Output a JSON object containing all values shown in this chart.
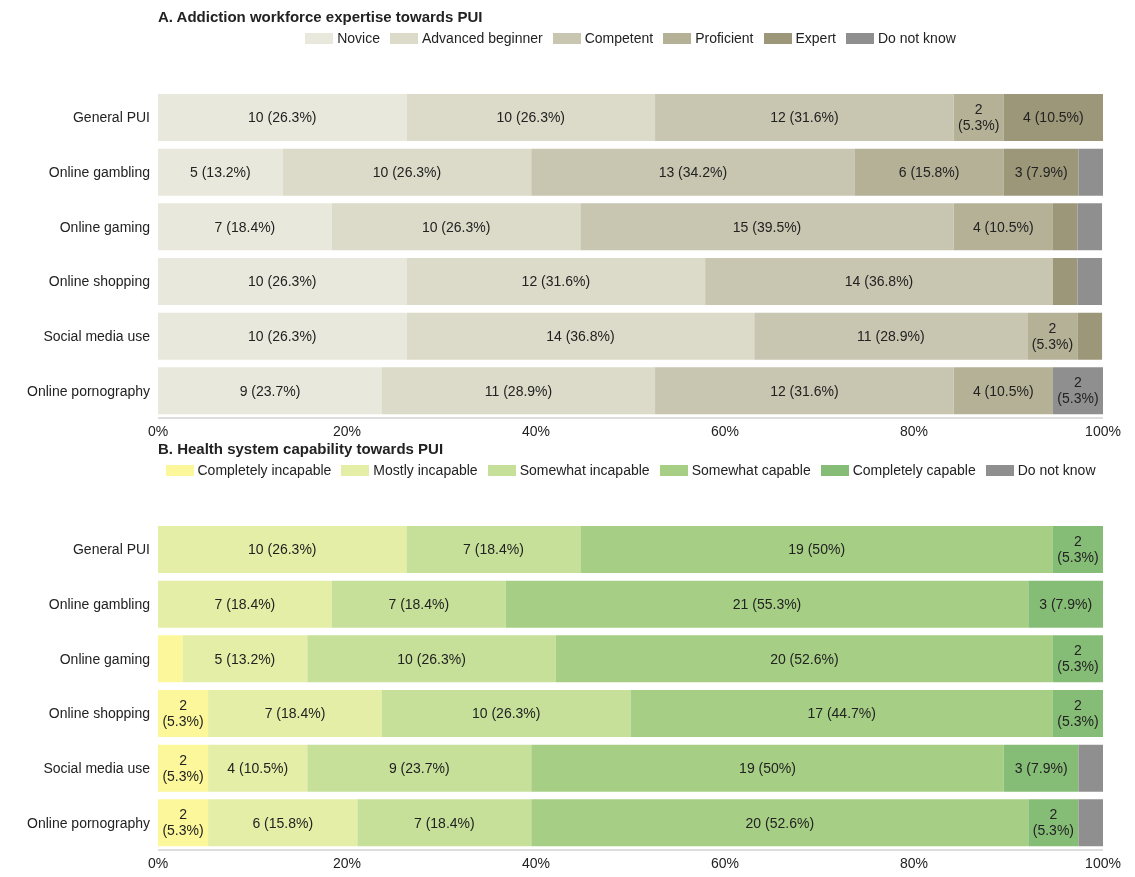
{
  "chart_data": [
    {
      "type": "bar",
      "orientation": "horizontal",
      "stacked": true,
      "title": "A. Addiction workforce expertise towards PUI",
      "categories": [
        "General PUI",
        "Online gambling",
        "Online gaming",
        "Online shopping",
        "Social media use",
        "Online pornography"
      ],
      "xlim": [
        0,
        100
      ],
      "xticks": [
        {
          "value": 0,
          "label": "0%"
        },
        {
          "value": 20,
          "label": "20%"
        },
        {
          "value": 40,
          "label": "40%"
        },
        {
          "value": 60,
          "label": "60%"
        },
        {
          "value": 80,
          "label": "80%"
        },
        {
          "value": 100,
          "label": "100%"
        }
      ],
      "legend": "top",
      "grid": false,
      "series": [
        {
          "name": "Novice",
          "color": "#e9e8dc",
          "values": [
            26.3,
            13.2,
            18.4,
            26.3,
            26.3,
            23.7
          ],
          "value_labels": [
            "10 (26.3%)",
            "5 (13.2%)",
            "7 (18.4%)",
            "10 (26.3%)",
            "10 (26.3%)",
            "9 (23.7%)"
          ]
        },
        {
          "name": "Advanced beginner",
          "color": "#dcdac8",
          "values": [
            26.3,
            26.3,
            26.3,
            31.6,
            36.8,
            28.9
          ],
          "value_labels": [
            "10 (26.3%)",
            "10 (26.3%)",
            "10 (26.3%)",
            "12 (31.6%)",
            "14 (36.8%)",
            "11 (28.9%)"
          ]
        },
        {
          "name": "Competent",
          "color": "#c8c5b0",
          "values": [
            31.6,
            34.2,
            39.5,
            36.8,
            28.9,
            31.6
          ],
          "value_labels": [
            "12 (31.6%)",
            "13 (34.2%)",
            "15 (39.5%)",
            "14 (36.8%)",
            "11 (28.9%)",
            "12 (31.6%)"
          ]
        },
        {
          "name": "Proficient",
          "color": "#b5b197",
          "values": [
            5.3,
            15.8,
            10.5,
            0,
            5.3,
            10.5
          ],
          "value_labels": [
            "2 (5.3%)",
            "6 (15.8%)",
            "4 (10.5%)",
            null,
            "2 (5.3%)",
            "4 (10.5%)"
          ]
        },
        {
          "name": "Expert",
          "color": "#9c9779",
          "values": [
            10.5,
            7.9,
            2.6,
            2.6,
            2.6,
            0
          ],
          "value_labels": [
            "4 (10.5%)",
            "3 (7.9%)",
            null,
            null,
            null,
            null
          ]
        },
        {
          "name": "Do not know",
          "color": "#8f8f8f",
          "values": [
            0,
            2.6,
            2.6,
            2.6,
            0,
            5.3
          ],
          "value_labels": [
            null,
            null,
            null,
            null,
            null,
            "2 (5.3%)"
          ]
        }
      ]
    },
    {
      "type": "bar",
      "orientation": "horizontal",
      "stacked": true,
      "title": "B. Health system capability towards PUI",
      "categories": [
        "General PUI",
        "Online gambling",
        "Online gaming",
        "Online shopping",
        "Social media use",
        "Online pornography"
      ],
      "xlim": [
        0,
        100
      ],
      "xticks": [
        {
          "value": 0,
          "label": "0%"
        },
        {
          "value": 20,
          "label": "20%"
        },
        {
          "value": 40,
          "label": "40%"
        },
        {
          "value": 60,
          "label": "60%"
        },
        {
          "value": 80,
          "label": "80%"
        },
        {
          "value": 100,
          "label": "100%"
        }
      ],
      "legend": "top",
      "grid": false,
      "series": [
        {
          "name": "Completely incapable",
          "color": "#fbf79a",
          "values": [
            0,
            0,
            2.6,
            5.3,
            5.3,
            5.3
          ],
          "value_labels": [
            null,
            null,
            null,
            "2 (5.3%)",
            "2 (5.3%)",
            "2 (5.3%)"
          ]
        },
        {
          "name": "Mostly incapable",
          "color": "#e4eea6",
          "values": [
            26.3,
            18.4,
            13.2,
            18.4,
            10.5,
            15.8
          ],
          "value_labels": [
            "10 (26.3%)",
            "7 (18.4%)",
            "5 (13.2%)",
            "7 (18.4%)",
            "4 (10.5%)",
            "6 (15.8%)"
          ]
        },
        {
          "name": "Somewhat incapable",
          "color": "#c6e09a",
          "values": [
            18.4,
            18.4,
            26.3,
            26.3,
            23.7,
            18.4
          ],
          "value_labels": [
            "7 (18.4%)",
            "7 (18.4%)",
            "10 (26.3%)",
            "10 (26.3%)",
            "9 (23.7%)",
            "7 (18.4%)"
          ]
        },
        {
          "name": "Somewhat capable",
          "color": "#a6cf85",
          "values": [
            50,
            55.3,
            52.6,
            44.7,
            50,
            52.6
          ],
          "value_labels": [
            "19 (50%)",
            "21 (55.3%)",
            "20 (52.6%)",
            "17 (44.7%)",
            "19 (50%)",
            "20 (52.6%)"
          ]
        },
        {
          "name": "Completely capable",
          "color": "#86bd76",
          "values": [
            5.3,
            7.9,
            5.3,
            5.3,
            7.9,
            5.3
          ],
          "value_labels": [
            "2 (5.3%)",
            "3 (7.9%)",
            "2 (5.3%)",
            "2 (5.3%)",
            "3 (7.9%)",
            "2 (5.3%)"
          ]
        },
        {
          "name": "Do not know",
          "color": "#8f8f8f",
          "values": [
            0,
            0,
            0,
            0,
            2.6,
            2.6
          ],
          "value_labels": [
            null,
            null,
            null,
            null,
            null,
            null
          ]
        }
      ]
    }
  ]
}
